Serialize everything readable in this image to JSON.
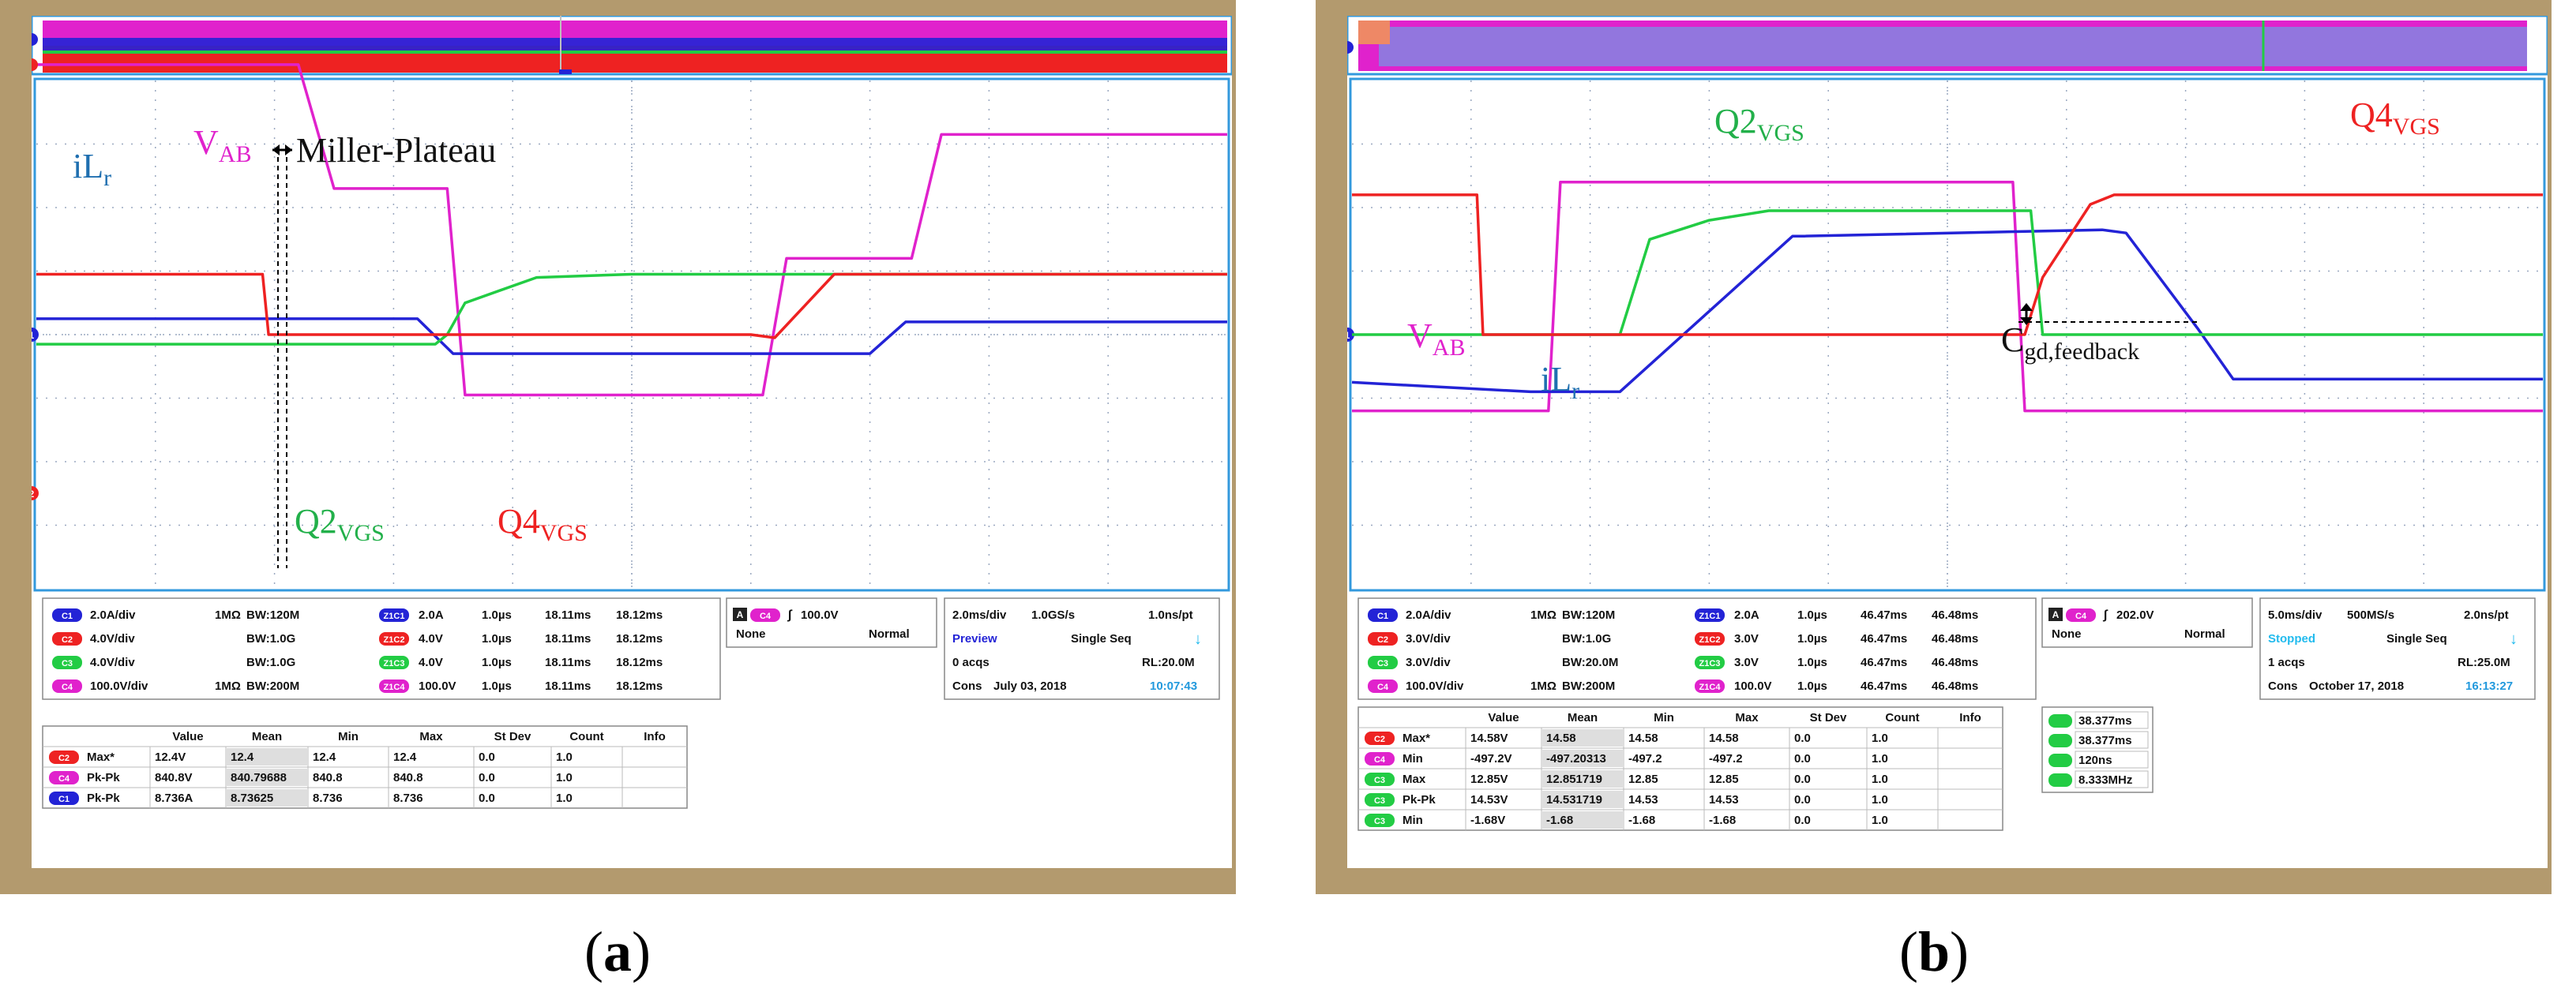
{
  "captions": {
    "a_open": "(",
    "a_letter": "a",
    "a_close": ")",
    "b_open": "(",
    "b_letter": "b",
    "b_close": ")"
  },
  "colors": {
    "ch1": "#2323d6",
    "ch2": "#ee2222",
    "ch3": "#22cc44",
    "ch4": "#e022cc",
    "grid": "#9aa8c0",
    "frame": "#3399dd"
  },
  "panel_a": {
    "labels": {
      "vab_main": "V",
      "vab_sub": "AB",
      "il_main": "iL",
      "il_sub": "r",
      "miller": "Miller-Plateau",
      "q2_main": "Q2",
      "q2_sub": "VGS",
      "q4_main": "Q4",
      "q4_sub": "VGS"
    },
    "channels": [
      {
        "tag": "C1",
        "scale": "2.0A/div",
        "imp": "1MΩ",
        "bw": "BW:120M",
        "ztag": "Z1C1",
        "zscale": "2.0A",
        "zt": "1.0µs",
        "tstart": "18.11ms",
        "tend": "18.12ms"
      },
      {
        "tag": "C2",
        "scale": "4.0V/div",
        "imp": "",
        "bw": "BW:1.0G",
        "ztag": "Z1C2",
        "zscale": "4.0V",
        "zt": "1.0µs",
        "tstart": "18.11ms",
        "tend": "18.12ms"
      },
      {
        "tag": "C3",
        "scale": "4.0V/div",
        "imp": "",
        "bw": "BW:1.0G",
        "ztag": "Z1C3",
        "zscale": "4.0V",
        "zt": "1.0µs",
        "tstart": "18.11ms",
        "tend": "18.12ms"
      },
      {
        "tag": "C4",
        "scale": "100.0V/div",
        "imp": "1MΩ",
        "bw": "BW:200M",
        "ztag": "Z1C4",
        "zscale": "100.0V",
        "zt": "1.0µs",
        "tstart": "18.11ms",
        "tend": "18.12ms"
      }
    ],
    "trigger": {
      "tag": "A",
      "ch": "C4",
      "level": "100.0V",
      "coupling": "None",
      "mode": "Normal"
    },
    "acq": {
      "tdiv": "2.0ms/div",
      "rate": "1.0GS/s",
      "res": "1.0ns/pt",
      "state": "Preview",
      "seq": "Single Seq",
      "acqs": "0 acqs",
      "rl": "RL:20.0M",
      "cons": "Cons",
      "date": "July 03, 2018",
      "time": "10:07:43"
    },
    "meas_header": [
      "Value",
      "Mean",
      "Min",
      "Max",
      "St Dev",
      "Count",
      "Info"
    ],
    "meas": [
      {
        "ch": "C2",
        "name": "Max*",
        "value": "12.4V",
        "mean": "12.4",
        "min": "12.4",
        "max": "12.4",
        "std": "0.0",
        "count": "1.0"
      },
      {
        "ch": "C4",
        "name": "Pk-Pk",
        "value": "840.8V",
        "mean": "840.79688",
        "min": "840.8",
        "max": "840.8",
        "std": "0.0",
        "count": "1.0"
      },
      {
        "ch": "C1",
        "name": "Pk-Pk",
        "value": "8.736A",
        "mean": "8.73625",
        "min": "8.736",
        "max": "8.736",
        "std": "0.0",
        "count": "1.0"
      }
    ]
  },
  "panel_b": {
    "labels": {
      "q2_main": "Q2",
      "q2_sub": "VGS",
      "q4_main": "Q4",
      "q4_sub": "VGS",
      "vab_main": "V",
      "vab_sub": "AB",
      "il_main": "iL",
      "il_sub": "r",
      "cgd_main": "C",
      "cgd_sub": "gd,feedback"
    },
    "channels": [
      {
        "tag": "C1",
        "scale": "2.0A/div",
        "imp": "1MΩ",
        "bw": "BW:120M",
        "ztag": "Z1C1",
        "zscale": "2.0A",
        "zt": "1.0µs",
        "tstart": "46.47ms",
        "tend": "46.48ms"
      },
      {
        "tag": "C2",
        "scale": "3.0V/div",
        "imp": "",
        "bw": "BW:1.0G",
        "ztag": "Z1C2",
        "zscale": "3.0V",
        "zt": "1.0µs",
        "tstart": "46.47ms",
        "tend": "46.48ms"
      },
      {
        "tag": "C3",
        "scale": "3.0V/div",
        "imp": "",
        "bw": "BW:20.0M",
        "ztag": "Z1C3",
        "zscale": "3.0V",
        "zt": "1.0µs",
        "tstart": "46.47ms",
        "tend": "46.48ms"
      },
      {
        "tag": "C4",
        "scale": "100.0V/div",
        "imp": "1MΩ",
        "bw": "BW:200M",
        "ztag": "Z1C4",
        "zscale": "100.0V",
        "zt": "1.0µs",
        "tstart": "46.47ms",
        "tend": "46.48ms"
      }
    ],
    "trigger": {
      "tag": "A",
      "ch": "C4",
      "level": "202.0V",
      "coupling": "None",
      "mode": "Normal"
    },
    "acq": {
      "tdiv": "5.0ms/div",
      "rate": "500MS/s",
      "res": "2.0ns/pt",
      "state": "Stopped",
      "seq": "Single Seq",
      "acqs": "1 acqs",
      "rl": "RL:25.0M",
      "cons": "Cons",
      "date": "October 17, 2018",
      "time": "16:13:27"
    },
    "meas_header": [
      "Value",
      "Mean",
      "Min",
      "Max",
      "St Dev",
      "Count",
      "Info"
    ],
    "meas": [
      {
        "ch": "C2",
        "name": "Max*",
        "value": "14.58V",
        "mean": "14.58",
        "min": "14.58",
        "max": "14.58",
        "std": "0.0",
        "count": "1.0"
      },
      {
        "ch": "C4",
        "name": "Min",
        "value": "-497.2V",
        "mean": "-497.20313",
        "min": "-497.2",
        "max": "-497.2",
        "std": "0.0",
        "count": "1.0"
      },
      {
        "ch": "C3",
        "name": "Max",
        "value": "12.85V",
        "mean": "12.851719",
        "min": "12.85",
        "max": "12.85",
        "std": "0.0",
        "count": "1.0"
      },
      {
        "ch": "C3",
        "name": "Pk-Pk",
        "value": "14.53V",
        "mean": "14.531719",
        "min": "14.53",
        "max": "14.53",
        "std": "0.0",
        "count": "1.0"
      },
      {
        "ch": "C3",
        "name": "Min",
        "value": "-1.68V",
        "mean": "-1.68",
        "min": "-1.68",
        "max": "-1.68",
        "std": "0.0",
        "count": "1.0"
      }
    ],
    "cursors": [
      "38.377ms",
      "38.377ms",
      "120ns",
      "8.333MHz"
    ]
  },
  "chart_data": [
    {
      "type": "line",
      "panel": "a",
      "x_unit": "µs",
      "x_div": 1.0,
      "series": [
        {
          "name": "V",
          "channel": "C4",
          "div_scale": "100.0V/div",
          "x": [
            0,
            2.2,
            2.5,
            3.45,
            3.6,
            6.1,
            6.3,
            7.35,
            7.6,
            10
          ],
          "y": [
            4.25,
            4.25,
            2.3,
            2.3,
            -0.95,
            -0.95,
            1.2,
            1.2,
            3.15,
            3.15
          ]
        },
        {
          "name": "iL",
          "channel": "C1",
          "div_scale": "2.0A/div",
          "x": [
            0,
            3.2,
            3.5,
            6.1,
            7.0,
            7.3,
            10
          ],
          "y": [
            0.25,
            0.25,
            -0.3,
            -0.3,
            -0.3,
            0.2,
            0.2
          ]
        },
        {
          "name": "Q2",
          "channel": "C3",
          "div_scale": "4.0V/div",
          "x": [
            0,
            3.35,
            3.45,
            3.6,
            4.2,
            5,
            10
          ],
          "y": [
            -0.15,
            -0.15,
            0,
            0.5,
            0.9,
            0.95,
            0.95
          ]
        },
        {
          "name": "Q4",
          "channel": "C2",
          "div_scale": "4.0V/div",
          "x": [
            0,
            1.9,
            1.95,
            6.0,
            6.2,
            6.7,
            10
          ],
          "y": [
            0.95,
            0.95,
            0,
            0,
            -0.05,
            0.95,
            0.95
          ]
        }
      ]
    },
    {
      "type": "line",
      "panel": "b",
      "x_unit": "µs",
      "x_div": 1.0,
      "series": [
        {
          "name": "V",
          "channel": "C4",
          "div_scale": "100.0V/div",
          "x": [
            0,
            1.65,
            1.75,
            5.55,
            5.65,
            10
          ],
          "y": [
            -1.2,
            -1.2,
            2.4,
            2.4,
            -1.2,
            -1.2
          ]
        },
        {
          "name": "iL",
          "channel": "C1",
          "div_scale": "2.0A/div",
          "x": [
            0,
            1.5,
            2.25,
            3.7,
            3.8,
            6.3,
            6.5,
            7.1,
            7.4,
            10
          ],
          "y": [
            -0.75,
            -0.9,
            -0.9,
            1.55,
            1.55,
            1.65,
            1.6,
            0.1,
            -0.7,
            -0.7
          ]
        },
        {
          "name": "Q2",
          "channel": "C3",
          "div_scale": "3.0V/div",
          "x": [
            0,
            2.25,
            2.5,
            3.0,
            3.5,
            5.7,
            5.8,
            10
          ],
          "y": [
            0,
            0,
            1.5,
            1.8,
            1.95,
            1.95,
            0,
            0
          ]
        },
        {
          "name": "Q4",
          "channel": "C2",
          "div_scale": "3.0V/div",
          "x": [
            0,
            1.05,
            1.1,
            5.65,
            5.8,
            6.2,
            6.4,
            10
          ],
          "y": [
            2.2,
            2.2,
            0,
            0,
            0.9,
            2.05,
            2.2,
            2.2
          ]
        }
      ]
    }
  ]
}
